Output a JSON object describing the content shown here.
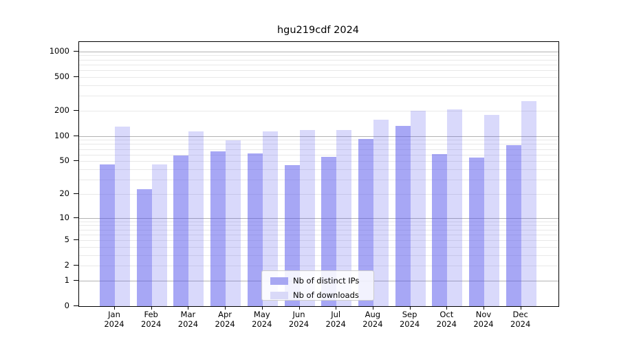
{
  "title": "hgu219cdf 2024",
  "colors": {
    "bar_ips": "rgba(80,80,235,0.5)",
    "bar_downloads": "rgba(80,80,235,0.22)",
    "legend_swatch_ips": "#a7a7f2",
    "legend_swatch_downloads": "#d9d9f8"
  },
  "legend": {
    "items": [
      "Nb of distinct IPs",
      "Nb of downloads"
    ]
  },
  "chart_data": {
    "type": "bar",
    "title": "hgu219cdf 2024",
    "categories": [
      "Jan 2024",
      "Feb 2024",
      "Mar 2024",
      "Apr 2024",
      "May 2024",
      "Jun 2024",
      "Jul 2024",
      "Aug 2024",
      "Sep 2024",
      "Oct 2024",
      "Nov 2024",
      "Dec 2024"
    ],
    "series": [
      {
        "name": "Nb of distinct IPs",
        "values": [
          46,
          23,
          58,
          65,
          62,
          45,
          56,
          92,
          132,
          61,
          55,
          77
        ]
      },
      {
        "name": "Nb of downloads",
        "values": [
          130,
          46,
          114,
          88,
          114,
          117,
          118,
          156,
          198,
          208,
          177,
          261
        ]
      }
    ],
    "xlabel": "",
    "ylabel": "",
    "y_scale": "log1p",
    "y_scale_max": 1290,
    "ylim": [
      0,
      1290
    ],
    "grid": true,
    "legend_position": "inside lower center",
    "y_ticks": [
      {
        "value": 1000,
        "label": "1000"
      },
      {
        "value": 500,
        "label": "500"
      },
      {
        "value": 200,
        "label": "200"
      },
      {
        "value": 100,
        "label": "100"
      },
      {
        "value": 50,
        "label": "50"
      },
      {
        "value": 20,
        "label": "20"
      },
      {
        "value": 10,
        "label": "10"
      },
      {
        "value": 5,
        "label": "5"
      },
      {
        "value": 2,
        "label": "2"
      },
      {
        "value": 1,
        "label": "1"
      },
      {
        "value": 0,
        "label": "0"
      }
    ],
    "y_gridlines_major": [
      1,
      10,
      100,
      1000
    ],
    "y_gridlines_minor": [
      2,
      3,
      4,
      5,
      6,
      7,
      8,
      9,
      20,
      30,
      40,
      50,
      60,
      70,
      80,
      90,
      200,
      300,
      400,
      500,
      600,
      700,
      800,
      900
    ]
  }
}
